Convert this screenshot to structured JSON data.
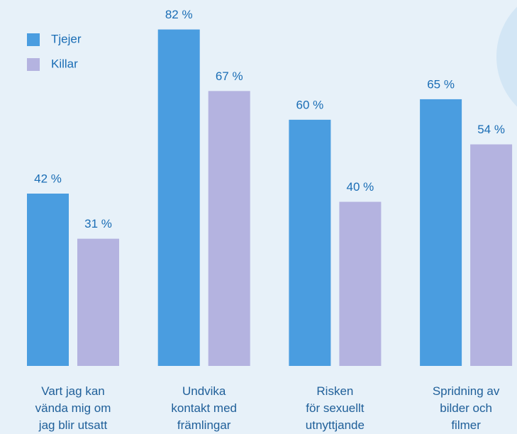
{
  "chart_data": {
    "type": "bar",
    "categories": [
      "Vart jag kan\nvända mig om\njag blir utsatt",
      "Undvika\nkontakt med\nfrämlingar",
      "Risken\nför sexuellt\nutnyttjande",
      "Spridning av\nbilder och\nfilmer"
    ],
    "series": [
      {
        "name": "Tjejer",
        "color": "#4a9de0",
        "values": [
          42,
          82,
          60,
          65
        ],
        "value_labels": [
          "42 %",
          "82 %",
          "60 %",
          "65 %"
        ]
      },
      {
        "name": "Killar",
        "color": "#b4b3e0",
        "values": [
          31,
          67,
          40,
          54
        ],
        "value_labels": [
          "31 %",
          "67 %",
          "40 %",
          "54 %"
        ]
      }
    ],
    "ylim": [
      0,
      84
    ],
    "legend": "top-left"
  }
}
